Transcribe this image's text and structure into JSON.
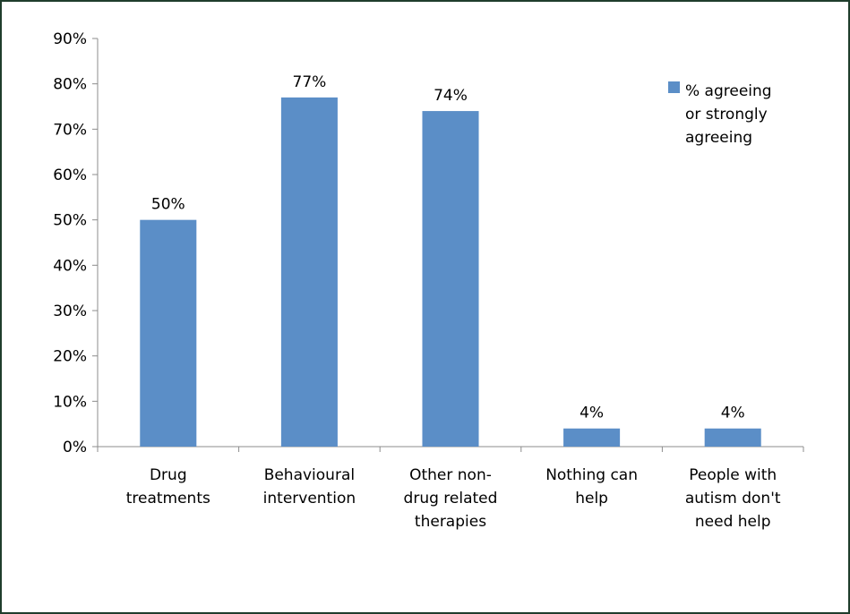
{
  "chart_data": {
    "type": "bar",
    "categories": [
      [
        "Drug",
        "treatments"
      ],
      [
        "Behavioural",
        "intervention"
      ],
      [
        "Other non-",
        "drug related",
        "therapies"
      ],
      [
        "Nothing can",
        "help"
      ],
      [
        "People with",
        "autism don't",
        "need help"
      ]
    ],
    "series": [
      {
        "name": [
          "% agreeing",
          "or strongly",
          "agreeing"
        ],
        "values": [
          50,
          77,
          74,
          4,
          4
        ],
        "data_labels": [
          "50%",
          "77%",
          "74%",
          "4%",
          "4%"
        ],
        "color": "#5b8ec7"
      }
    ],
    "yticks": [
      "0%",
      "10%",
      "20%",
      "30%",
      "40%",
      "50%",
      "60%",
      "70%",
      "80%",
      "90%"
    ],
    "ylim": [
      0,
      90
    ],
    "grid": false,
    "legend_position": "top-right"
  }
}
